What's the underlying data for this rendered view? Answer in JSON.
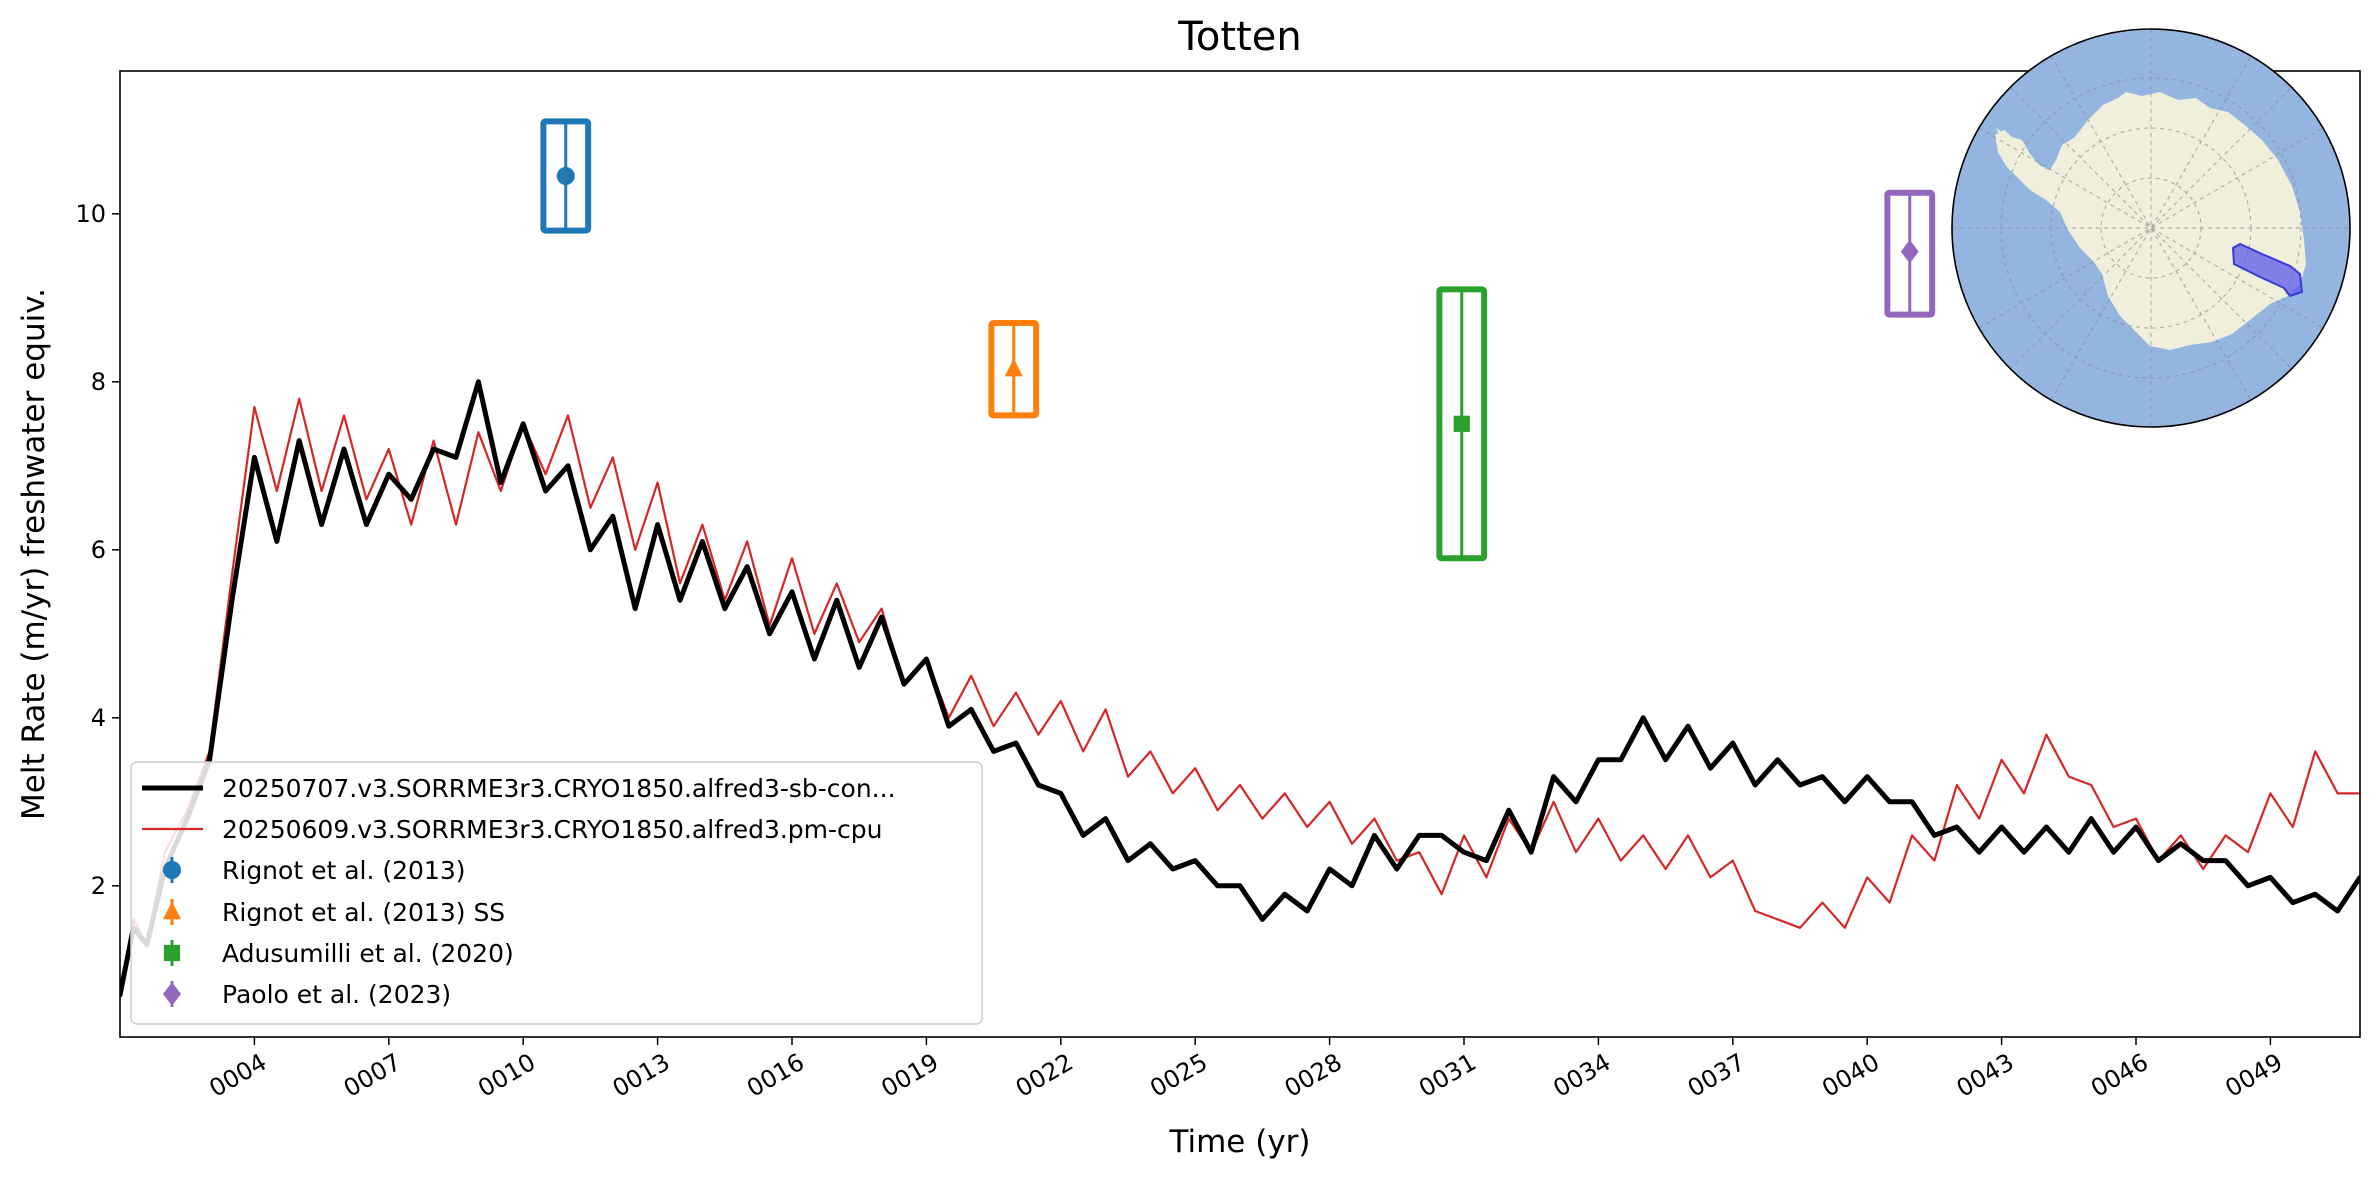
{
  "chart_data": {
    "type": "line",
    "title": "Totten",
    "xlabel": "Time (yr)",
    "ylabel": "Melt Rate (m/yr) freshwater equiv.",
    "xlim": [
      1,
      51
    ],
    "ylim": [
      0.2,
      11.7
    ],
    "xticks": [
      4,
      7,
      10,
      13,
      16,
      19,
      22,
      25,
      28,
      31,
      34,
      37,
      40,
      43,
      46,
      49
    ],
    "xtick_labels": [
      "0004",
      "0007",
      "0010",
      "0013",
      "0016",
      "0019",
      "0022",
      "0025",
      "0028",
      "0031",
      "0034",
      "0037",
      "0040",
      "0043",
      "0046",
      "0049"
    ],
    "yticks": [
      2,
      4,
      6,
      8,
      10
    ],
    "ytick_labels": [
      "2",
      "4",
      "6",
      "8",
      "10"
    ],
    "legend_position": "lower-left",
    "series": [
      {
        "name": "20250707.v3.SORRME3r3.CRYO1850.alfred3-sb-con...",
        "color": "#000000",
        "style": "thick-line",
        "x": [
          1.0,
          1.3,
          1.6,
          2.0,
          2.5,
          3.0,
          3.5,
          4.0,
          4.5,
          5.0,
          5.5,
          6.0,
          6.5,
          7.0,
          7.5,
          8.0,
          8.5,
          9.0,
          9.5,
          10.0,
          10.5,
          11.0,
          11.5,
          12.0,
          12.5,
          13.0,
          13.5,
          14.0,
          14.5,
          15.0,
          15.5,
          16.0,
          16.5,
          17.0,
          17.5,
          18.0,
          18.5,
          19.0,
          19.5,
          20.0,
          20.5,
          21.0,
          21.5,
          22.0,
          22.5,
          23.0,
          23.5,
          24.0,
          24.5,
          25.0,
          25.5,
          26.0,
          26.5,
          27.0,
          27.5,
          28.0,
          28.5,
          29.0,
          29.5,
          30.0,
          30.5,
          31.0,
          31.5,
          32.0,
          32.5,
          33.0,
          33.5,
          34.0,
          34.5,
          35.0,
          35.5,
          36.0,
          36.5,
          37.0,
          37.5,
          38.0,
          38.5,
          39.0,
          39.5,
          40.0,
          40.5,
          41.0,
          41.5,
          42.0,
          42.5,
          43.0,
          43.5,
          44.0,
          44.5,
          45.0,
          45.5,
          46.0,
          46.5,
          47.0,
          47.5,
          48.0,
          48.5,
          49.0,
          49.5,
          50.0,
          50.5,
          51.0
        ],
        "values": [
          0.7,
          1.5,
          1.3,
          2.2,
          2.8,
          3.5,
          5.4,
          7.1,
          6.1,
          7.3,
          6.3,
          7.2,
          6.3,
          6.9,
          6.6,
          7.2,
          7.1,
          8.0,
          6.8,
          7.5,
          6.7,
          7.0,
          6.0,
          6.4,
          5.3,
          6.3,
          5.4,
          6.1,
          5.3,
          5.8,
          5.0,
          5.5,
          4.7,
          5.4,
          4.6,
          5.2,
          4.4,
          4.7,
          3.9,
          4.1,
          3.6,
          3.7,
          3.2,
          3.1,
          2.6,
          2.8,
          2.3,
          2.5,
          2.2,
          2.3,
          2.0,
          2.0,
          1.6,
          1.9,
          1.7,
          2.2,
          2.0,
          2.6,
          2.2,
          2.6,
          2.6,
          2.4,
          2.3,
          2.9,
          2.4,
          3.3,
          3.0,
          3.5,
          3.5,
          4.0,
          3.5,
          3.9,
          3.4,
          3.7,
          3.2,
          3.5,
          3.2,
          3.3,
          3.0,
          3.3,
          3.0,
          3.0,
          2.6,
          2.7,
          2.4,
          2.7,
          2.4,
          2.7,
          2.4,
          2.8,
          2.4,
          2.7,
          2.3,
          2.5,
          2.3,
          2.3,
          2.0,
          2.1,
          1.8,
          1.9,
          1.7,
          2.1
        ]
      },
      {
        "name": "20250609.v3.SORRME3r3.CRYO1850.alfred3.pm-cpu",
        "color": "#d62728",
        "style": "thin-line",
        "x": [
          1.0,
          1.3,
          1.6,
          2.0,
          2.5,
          3.0,
          3.5,
          4.0,
          4.5,
          5.0,
          5.5,
          6.0,
          6.5,
          7.0,
          7.5,
          8.0,
          8.5,
          9.0,
          9.5,
          10.0,
          10.5,
          11.0,
          11.5,
          12.0,
          12.5,
          13.0,
          13.5,
          14.0,
          14.5,
          15.0,
          15.5,
          16.0,
          16.5,
          17.0,
          17.5,
          18.0,
          18.5,
          19.0,
          19.5,
          20.0,
          20.5,
          21.0,
          21.5,
          22.0,
          22.5,
          23.0,
          23.5,
          24.0,
          24.5,
          25.0,
          25.5,
          26.0,
          26.5,
          27.0,
          27.5,
          28.0,
          28.5,
          29.0,
          29.5,
          30.0,
          30.5,
          31.0,
          31.5,
          32.0,
          32.5,
          33.0,
          33.5,
          34.0,
          34.5,
          35.0,
          35.5,
          36.0,
          36.5,
          37.0,
          37.5,
          38.0,
          38.5,
          39.0,
          39.5,
          40.0,
          40.5,
          41.0,
          41.5,
          42.0,
          42.5,
          43.0,
          43.5,
          44.0,
          44.5,
          45.0,
          45.5,
          46.0,
          46.5,
          47.0,
          47.5,
          48.0,
          48.5,
          49.0,
          49.5,
          50.0,
          50.5,
          51.0
        ],
        "values": [
          0.7,
          1.6,
          1.3,
          2.4,
          2.9,
          3.6,
          5.7,
          7.7,
          6.7,
          7.8,
          6.7,
          7.6,
          6.6,
          7.2,
          6.3,
          7.3,
          6.3,
          7.4,
          6.7,
          7.5,
          6.9,
          7.6,
          6.5,
          7.1,
          6.0,
          6.8,
          5.6,
          6.3,
          5.4,
          6.1,
          5.1,
          5.9,
          5.0,
          5.6,
          4.9,
          5.3,
          4.4,
          4.7,
          4.0,
          4.5,
          3.9,
          4.3,
          3.8,
          4.2,
          3.6,
          4.1,
          3.3,
          3.6,
          3.1,
          3.4,
          2.9,
          3.2,
          2.8,
          3.1,
          2.7,
          3.0,
          2.5,
          2.8,
          2.3,
          2.4,
          1.9,
          2.6,
          2.1,
          2.8,
          2.4,
          3.0,
          2.4,
          2.8,
          2.3,
          2.6,
          2.2,
          2.6,
          2.1,
          2.3,
          1.7,
          1.6,
          1.5,
          1.8,
          1.5,
          2.1,
          1.8,
          2.6,
          2.3,
          3.2,
          2.8,
          3.5,
          3.1,
          3.8,
          3.3,
          3.2,
          2.7,
          2.8,
          2.3,
          2.6,
          2.2,
          2.6,
          2.4,
          3.1,
          2.7,
          3.6,
          3.1,
          3.1
        ]
      }
    ],
    "observations": [
      {
        "name": "Rignot et al. (2013)",
        "marker": "circle",
        "color": "#1f77b4",
        "x": 10.95,
        "y": 10.45,
        "ymin": 9.8,
        "ymax": 11.1,
        "xspan": 1.0
      },
      {
        "name": "Rignot et al. (2013) SS",
        "marker": "triangle",
        "color": "#ff7f0e",
        "x": 20.95,
        "y": 8.15,
        "ymin": 7.6,
        "ymax": 8.7,
        "xspan": 1.0
      },
      {
        "name": "Adusumilli et al. (2020)",
        "marker": "square",
        "color": "#2ca02c",
        "x": 30.95,
        "y": 7.5,
        "ymin": 5.9,
        "ymax": 9.1,
        "xspan": 1.0
      },
      {
        "name": "Paolo et al. (2023)",
        "marker": "diamond",
        "color": "#9467bd",
        "x": 40.95,
        "y": 9.55,
        "ymin": 8.8,
        "ymax": 10.25,
        "xspan": 1.0
      }
    ],
    "inset_map": {
      "projection": "south-polar",
      "ocean_color": "#94b5e0",
      "land_color": "#efefdb",
      "highlight_color": "#5a5ae8",
      "highlight_region": "Totten Ice Shelf"
    }
  }
}
